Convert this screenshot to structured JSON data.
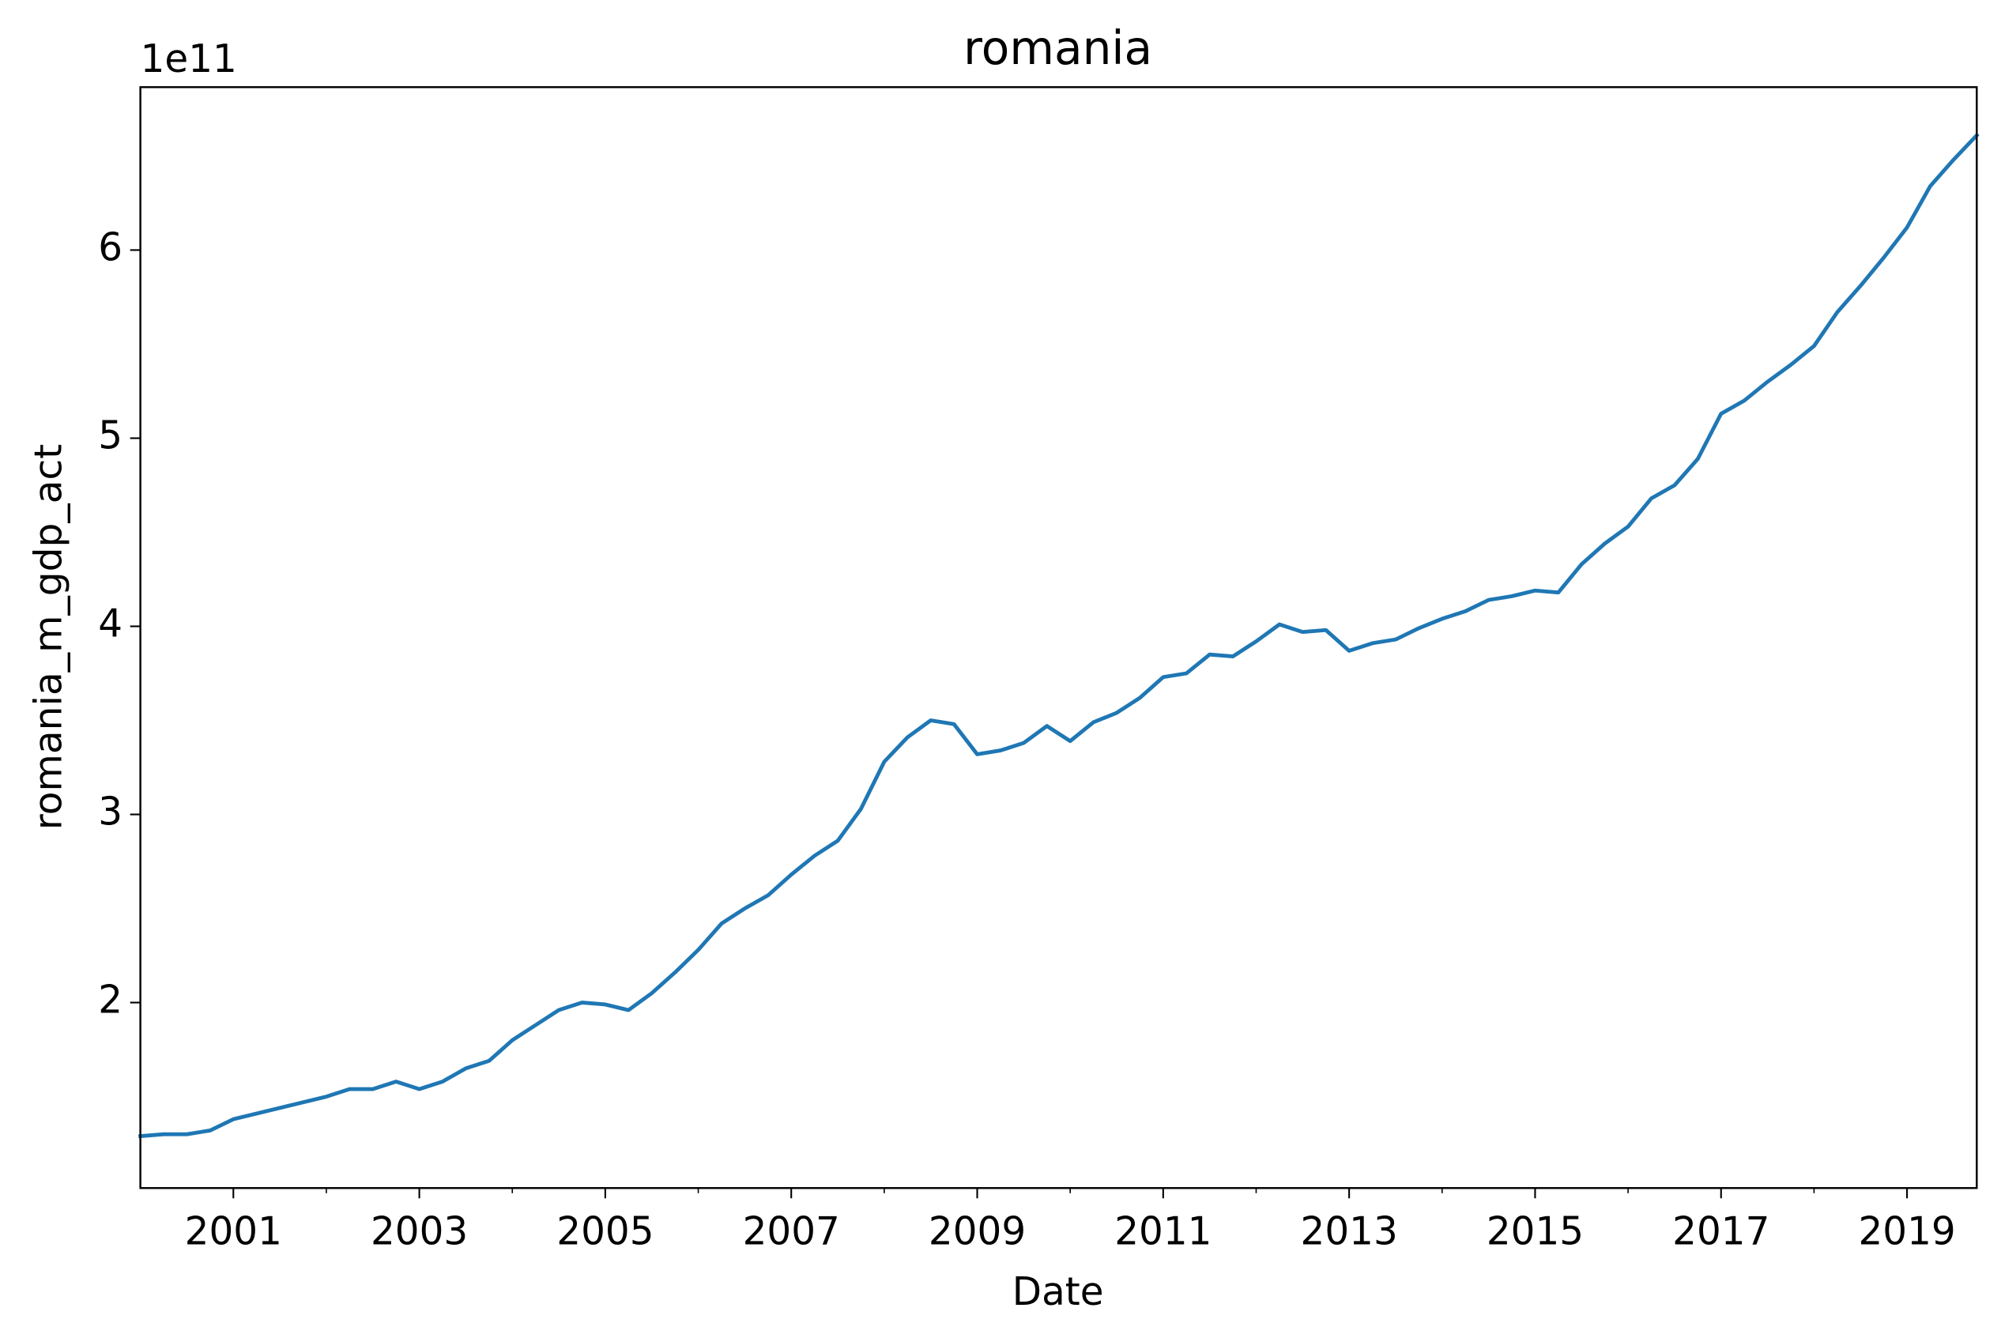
{
  "chart_data": {
    "type": "line",
    "title": "romania",
    "xlabel": "Date",
    "ylabel": "romania_m_gdp_act",
    "y_offset_label": "1e11",
    "x": [
      2000,
      2000.25,
      2000.5,
      2000.75,
      2001,
      2001.25,
      2001.5,
      2001.75,
      2002,
      2002.25,
      2002.5,
      2002.75,
      2003,
      2003.25,
      2003.5,
      2003.75,
      2004,
      2004.25,
      2004.5,
      2004.75,
      2005,
      2005.25,
      2005.5,
      2005.75,
      2006,
      2006.25,
      2006.5,
      2006.75,
      2007,
      2007.25,
      2007.5,
      2007.75,
      2008,
      2008.25,
      2008.5,
      2008.75,
      2009,
      2009.25,
      2009.5,
      2009.75,
      2010,
      2010.25,
      2010.5,
      2010.75,
      2011,
      2011.25,
      2011.5,
      2011.75,
      2012,
      2012.25,
      2012.5,
      2012.75,
      2013,
      2013.25,
      2013.5,
      2013.75,
      2014,
      2014.25,
      2014.5,
      2014.75,
      2015,
      2015.25,
      2015.5,
      2015.75,
      2016,
      2016.25,
      2016.5,
      2016.75,
      2017,
      2017.25,
      2017.5,
      2017.75,
      2018,
      2018.25,
      2018.5,
      2018.75,
      2019,
      2019.25,
      2019.5,
      2019.75
    ],
    "series": [
      {
        "name": "romania_m_gdp_act",
        "color": "#1f77b4",
        "values": [
          1.29,
          1.3,
          1.3,
          1.32,
          1.38,
          1.41,
          1.44,
          1.47,
          1.5,
          1.54,
          1.54,
          1.58,
          1.54,
          1.58,
          1.65,
          1.69,
          1.8,
          1.88,
          1.96,
          2.0,
          1.99,
          1.96,
          2.05,
          2.16,
          2.28,
          2.42,
          2.5,
          2.57,
          2.68,
          2.78,
          2.86,
          3.03,
          3.28,
          3.41,
          3.5,
          3.48,
          3.32,
          3.34,
          3.38,
          3.47,
          3.39,
          3.49,
          3.54,
          3.62,
          3.73,
          3.75,
          3.85,
          3.84,
          3.92,
          4.01,
          3.97,
          3.98,
          3.87,
          3.91,
          3.93,
          3.99,
          4.04,
          4.08,
          4.14,
          4.16,
          4.19,
          4.18,
          4.33,
          4.44,
          4.53,
          4.68,
          4.75,
          4.89,
          5.13,
          5.2,
          5.3,
          5.39,
          5.49,
          5.67,
          5.81,
          5.96,
          6.12,
          6.34,
          6.48,
          6.61
        ]
      }
    ],
    "xlim": [
      2000,
      2019.75
    ],
    "xticks": [
      2001,
      2003,
      2005,
      2007,
      2009,
      2011,
      2013,
      2015,
      2017,
      2019
    ],
    "xminorticks": [
      2002,
      2004,
      2006,
      2008,
      2010,
      2012,
      2014,
      2016,
      2018
    ],
    "ylim": [
      1.014,
      6.866
    ],
    "yticks": [
      2,
      3,
      4,
      5,
      6
    ],
    "grid": false
  }
}
